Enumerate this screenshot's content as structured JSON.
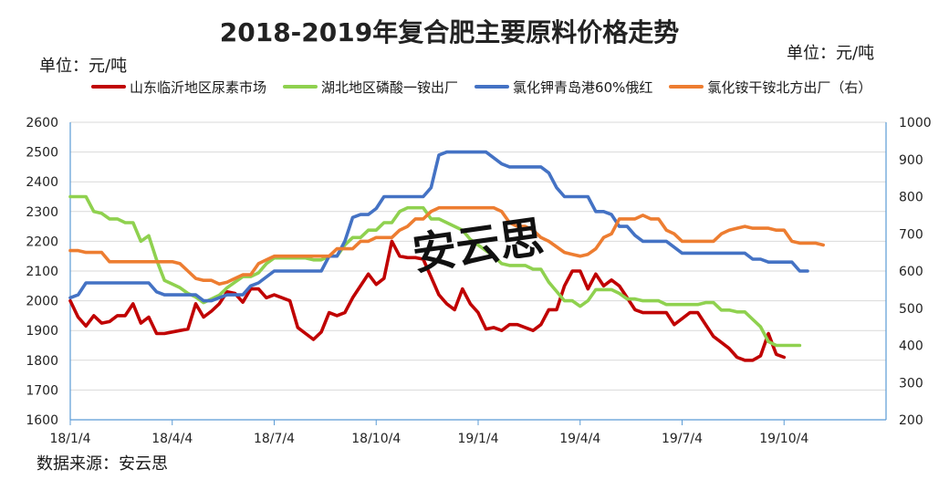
{
  "title": "2018-2019年复合肥主要原料价格走势",
  "unit_left": "单位：元/吨",
  "unit_right": "单位：元/吨",
  "source": "数据来源：安云思",
  "watermark": "安云思",
  "chart_data": {
    "type": "line",
    "x_tick_labels": [
      "18/1/4",
      "18/4/4",
      "18/7/4",
      "18/10/4",
      "19/1/4",
      "19/4/4",
      "19/7/4",
      "19/10/4"
    ],
    "x_range_weeks": [
      0,
      104
    ],
    "y_left": {
      "min": 1600,
      "max": 2600,
      "ticks": [
        1600,
        1700,
        1800,
        1900,
        2000,
        2100,
        2200,
        2300,
        2400,
        2500,
        2600
      ]
    },
    "y_right": {
      "min": 200,
      "max": 1000,
      "ticks": [
        200,
        300,
        400,
        500,
        600,
        700,
        800,
        900,
        1000
      ]
    },
    "grid": true,
    "legend_position": "top",
    "series": [
      {
        "name": "山东临沂地区尿素市场",
        "color": "#c00000",
        "axis": "left",
        "values": [
          2000,
          1945,
          1915,
          1950,
          1925,
          1930,
          1950,
          1950,
          1990,
          1925,
          1945,
          1890,
          1890,
          1895,
          1900,
          1905,
          1990,
          1945,
          1965,
          1990,
          2030,
          2025,
          1995,
          2040,
          2040,
          2010,
          2020,
          2010,
          2000,
          1910,
          1890,
          1870,
          1895,
          1960,
          1950,
          1960,
          2010,
          2050,
          2090,
          2055,
          2075,
          2200,
          2150,
          2145,
          2145,
          2140,
          2080,
          2020,
          1990,
          1970,
          2040,
          1990,
          1960,
          1905,
          1910,
          1900,
          1920,
          1920,
          1910,
          1900,
          1920,
          1970,
          1970,
          2050,
          2100,
          2100,
          2040,
          2090,
          2050,
          2070,
          2050,
          2010,
          1970,
          1960,
          1960,
          1960,
          1960,
          1920,
          1940,
          1960,
          1960,
          1920,
          1880,
          1860,
          1840,
          1810,
          1800,
          1800,
          1815,
          1890,
          1820,
          1810
        ]
      },
      {
        "name": "湖北地区磷酸一铵出厂",
        "color": "#8fd14f",
        "axis": "right",
        "values": [
          800,
          800,
          800,
          760,
          755,
          740,
          740,
          730,
          730,
          680,
          695,
          630,
          575,
          565,
          555,
          540,
          530,
          515,
          525,
          535,
          555,
          570,
          585,
          585,
          595,
          620,
          635,
          635,
          635,
          635,
          635,
          630,
          630,
          640,
          640,
          670,
          690,
          690,
          710,
          710,
          730,
          730,
          760,
          770,
          770,
          770,
          740,
          740,
          730,
          720,
          710,
          685,
          670,
          655,
          640,
          620,
          615,
          615,
          615,
          605,
          605,
          570,
          545,
          520,
          520,
          505,
          520,
          550,
          550,
          550,
          540,
          525,
          525,
          520,
          520,
          520,
          510,
          510,
          510,
          510,
          510,
          515,
          515,
          495,
          495,
          490,
          490,
          470,
          450,
          410,
          400,
          400,
          400,
          400
        ]
      },
      {
        "name": "氯化钾青岛港60%俄红",
        "color": "#4472c4",
        "axis": "left",
        "values": [
          2010,
          2020,
          2060,
          2060,
          2060,
          2060,
          2060,
          2060,
          2060,
          2060,
          2060,
          2030,
          2020,
          2020,
          2020,
          2020,
          2020,
          2000,
          2000,
          2010,
          2020,
          2020,
          2020,
          2050,
          2060,
          2080,
          2100,
          2100,
          2100,
          2100,
          2100,
          2100,
          2100,
          2150,
          2150,
          2200,
          2280,
          2290,
          2290,
          2310,
          2350,
          2350,
          2350,
          2350,
          2350,
          2350,
          2380,
          2490,
          2500,
          2500,
          2500,
          2500,
          2500,
          2500,
          2480,
          2460,
          2450,
          2450,
          2450,
          2450,
          2450,
          2430,
          2380,
          2350,
          2350,
          2350,
          2350,
          2300,
          2300,
          2290,
          2250,
          2250,
          2220,
          2200,
          2200,
          2200,
          2200,
          2180,
          2160,
          2160,
          2160,
          2160,
          2160,
          2160,
          2160,
          2160,
          2160,
          2140,
          2140,
          2130,
          2130,
          2130,
          2130,
          2100,
          2100
        ]
      },
      {
        "name": "氯化铵干铵北方出厂（右）",
        "color": "#ed7d31",
        "axis": "right",
        "values": [
          655,
          655,
          650,
          650,
          650,
          625,
          625,
          625,
          625,
          625,
          625,
          625,
          625,
          625,
          620,
          600,
          580,
          575,
          575,
          565,
          570,
          580,
          590,
          590,
          620,
          630,
          640,
          640,
          640,
          640,
          640,
          640,
          640,
          640,
          660,
          660,
          660,
          680,
          680,
          690,
          690,
          690,
          710,
          720,
          740,
          740,
          760,
          770,
          770,
          770,
          770,
          770,
          770,
          770,
          770,
          760,
          730,
          720,
          720,
          710,
          690,
          680,
          665,
          650,
          645,
          640,
          645,
          660,
          690,
          700,
          740,
          740,
          740,
          750,
          740,
          740,
          710,
          700,
          680,
          680,
          680,
          680,
          680,
          700,
          710,
          715,
          720,
          715,
          715,
          715,
          710,
          710,
          680,
          675,
          675,
          675,
          670
        ]
      }
    ]
  }
}
